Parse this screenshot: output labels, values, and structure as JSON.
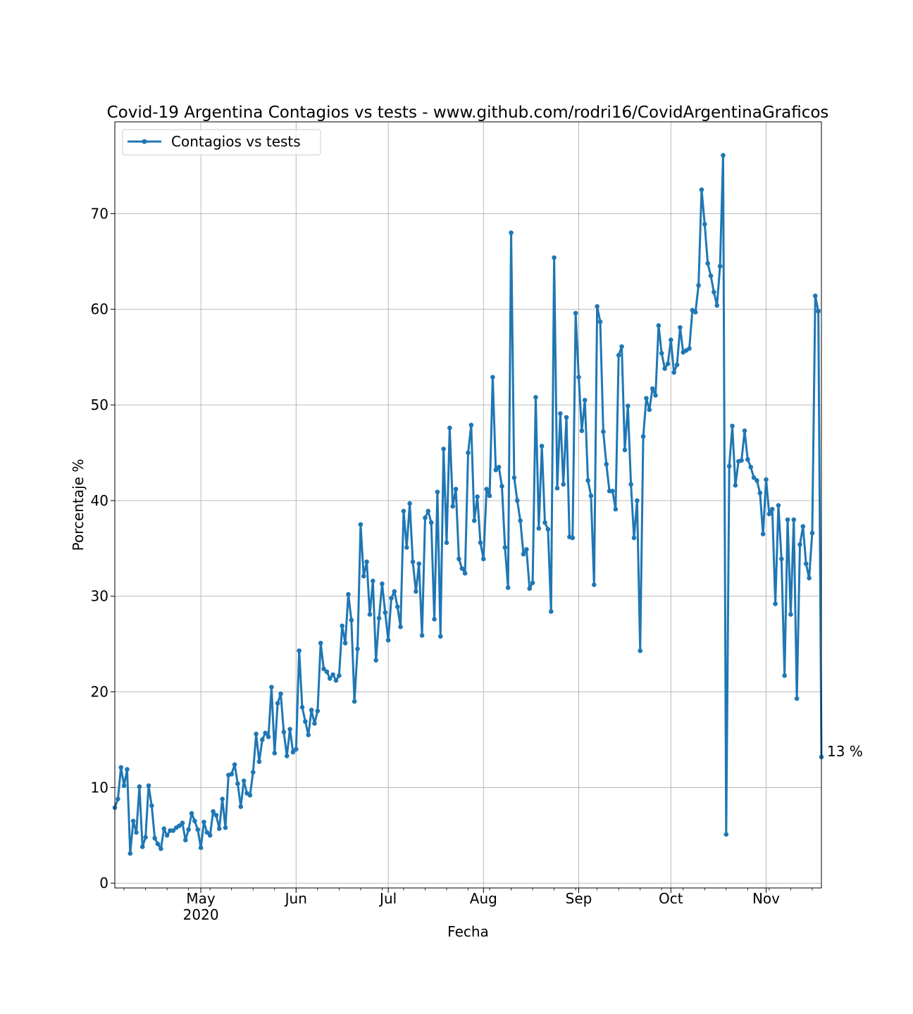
{
  "chart_data": {
    "type": "line",
    "title": "Covid-19 Argentina Contagios vs tests - www.github.com/rodri16/CovidArgentinaGraficos",
    "xlabel": "Fecha",
    "ylabel": "Porcentaje %",
    "x_start": "2020-04-03",
    "x_end": "2020-11-19",
    "xlim": [
      "2020-04-03",
      "2020-11-19"
    ],
    "ylim": [
      -0.5,
      79.6
    ],
    "grid": true,
    "legend_position": "top-left",
    "x_ticks": [
      {
        "date": "2020-05-01",
        "label": "May",
        "sublabel": "2020"
      },
      {
        "date": "2020-06-01",
        "label": "Jun",
        "sublabel": ""
      },
      {
        "date": "2020-07-01",
        "label": "Jul",
        "sublabel": ""
      },
      {
        "date": "2020-08-01",
        "label": "Aug",
        "sublabel": ""
      },
      {
        "date": "2020-09-01",
        "label": "Sep",
        "sublabel": ""
      },
      {
        "date": "2020-10-01",
        "label": "Oct",
        "sublabel": ""
      },
      {
        "date": "2020-11-01",
        "label": "Nov",
        "sublabel": ""
      }
    ],
    "y_ticks": [
      0,
      10,
      20,
      30,
      40,
      50,
      60,
      70
    ],
    "series": [
      {
        "name": "Contagios vs tests",
        "color": "#1f77b4",
        "values": [
          7.9,
          8.8,
          12.1,
          10.2,
          11.9,
          3.1,
          6.5,
          5.3,
          10.1,
          3.8,
          4.8,
          10.2,
          8.1,
          4.7,
          4.1,
          3.6,
          5.7,
          5.0,
          5.5,
          5.5,
          5.8,
          6.0,
          6.3,
          4.5,
          5.6,
          7.3,
          6.5,
          5.6,
          3.7,
          6.4,
          5.3,
          5.0,
          7.5,
          7.1,
          5.7,
          8.8,
          5.8,
          11.3,
          11.4,
          12.4,
          10.4,
          8.0,
          10.7,
          9.4,
          9.2,
          11.6,
          15.6,
          12.7,
          15.0,
          15.7,
          15.3,
          20.5,
          13.6,
          18.8,
          19.8,
          15.8,
          13.3,
          16.1,
          13.7,
          14.0,
          24.3,
          18.4,
          16.9,
          15.5,
          18.1,
          16.7,
          18.0,
          25.1,
          22.4,
          22.1,
          21.4,
          21.8,
          21.2,
          21.7,
          26.9,
          25.1,
          30.2,
          27.5,
          19.0,
          24.5,
          37.5,
          32.1,
          33.6,
          28.1,
          31.6,
          23.3,
          27.7,
          31.3,
          28.3,
          25.4,
          29.8,
          30.5,
          28.9,
          26.8,
          38.9,
          35.1,
          39.7,
          33.6,
          30.5,
          33.4,
          25.9,
          38.2,
          38.9,
          37.7,
          27.6,
          40.9,
          25.8,
          45.4,
          35.6,
          47.6,
          39.4,
          41.2,
          33.9,
          32.9,
          32.4,
          45.0,
          47.9,
          37.9,
          40.4,
          35.6,
          33.9,
          41.2,
          40.5,
          52.9,
          43.2,
          43.5,
          41.5,
          35.1,
          30.9,
          68.0,
          42.4,
          40.0,
          37.9,
          34.4,
          34.9,
          30.8,
          31.4,
          50.8,
          37.1,
          45.7,
          37.7,
          37.0,
          28.4,
          65.4,
          41.3,
          49.1,
          41.7,
          48.7,
          36.2,
          36.1,
          59.6,
          52.9,
          47.3,
          50.5,
          42.1,
          40.5,
          31.2,
          60.3,
          58.7,
          47.2,
          43.8,
          41.0,
          41.0,
          39.1,
          55.2,
          56.1,
          45.3,
          49.9,
          41.7,
          36.1,
          40.0,
          24.3,
          46.7,
          50.7,
          49.5,
          51.7,
          51.0,
          58.3,
          55.4,
          53.8,
          54.3,
          56.8,
          53.4,
          54.2,
          58.1,
          55.5,
          55.7,
          55.9,
          59.9,
          59.7,
          62.5,
          72.5,
          68.9,
          64.8,
          63.5,
          61.8,
          60.4,
          64.5,
          76.1,
          5.1,
          43.6,
          47.8,
          41.6,
          44.1,
          44.2,
          47.3,
          44.3,
          43.5,
          42.4,
          42.1,
          40.8,
          36.5,
          42.2,
          38.6,
          39.1,
          29.2,
          39.5,
          33.9,
          21.7,
          38.0,
          28.1,
          38.0,
          19.3,
          35.4,
          37.3,
          33.4,
          31.9,
          36.6,
          61.4,
          59.8,
          13.2
        ]
      }
    ],
    "annotation": {
      "text": "13 %",
      "color": "#0000ff",
      "x": "2020-11-19",
      "y": 13.2
    }
  }
}
